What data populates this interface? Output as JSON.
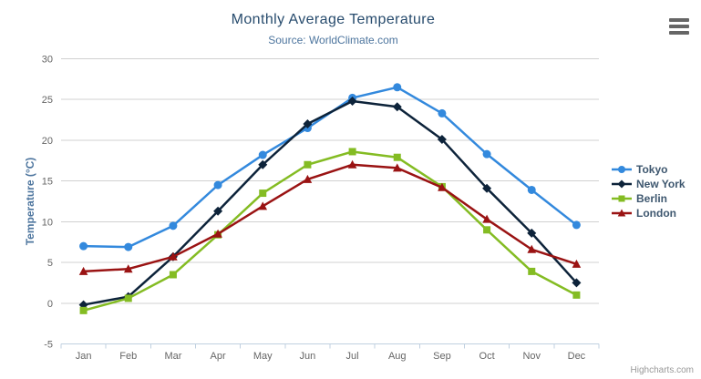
{
  "header": {
    "export_menu_icon": "hamburger-icon"
  },
  "credits": {
    "label": "Highcharts.com"
  },
  "chart_data": {
    "type": "line",
    "title": "Monthly Average Temperature",
    "subtitle": "Source: WorldClimate.com",
    "xlabel": "",
    "ylabel": "Temperature (°C)",
    "categories": [
      "Jan",
      "Feb",
      "Mar",
      "Apr",
      "May",
      "Jun",
      "Jul",
      "Aug",
      "Sep",
      "Oct",
      "Nov",
      "Dec"
    ],
    "ylim": [
      -5,
      30
    ],
    "yticks": [
      -5,
      0,
      5,
      10,
      15,
      20,
      25,
      30
    ],
    "grid": true,
    "legend_position": "right",
    "colors": {
      "grid_line": "#d0d0d0",
      "axis_line": "#c0d0e0",
      "axis_label": "#666666",
      "title": "#274b6d",
      "subtitle": "#4d759e"
    },
    "series": [
      {
        "name": "Tokyo",
        "color": "#3389dd",
        "marker": "circle",
        "values": [
          7.0,
          6.9,
          9.5,
          14.5,
          18.2,
          21.5,
          25.2,
          26.5,
          23.3,
          18.3,
          13.9,
          9.6
        ]
      },
      {
        "name": "New York",
        "color": "#0d233a",
        "marker": "diamond",
        "values": [
          -0.2,
          0.8,
          5.7,
          11.3,
          17.0,
          22.0,
          24.8,
          24.1,
          20.1,
          14.1,
          8.6,
          2.5
        ]
      },
      {
        "name": "Berlin",
        "color": "#84bc23",
        "marker": "square",
        "values": [
          -0.9,
          0.6,
          3.5,
          8.4,
          13.5,
          17.0,
          18.6,
          17.9,
          14.3,
          9.0,
          3.9,
          1.0
        ]
      },
      {
        "name": "London",
        "color": "#9a1313",
        "marker": "triangle",
        "values": [
          3.9,
          4.2,
          5.7,
          8.5,
          11.9,
          15.2,
          17.0,
          16.6,
          14.2,
          10.3,
          6.6,
          4.8
        ]
      }
    ]
  }
}
